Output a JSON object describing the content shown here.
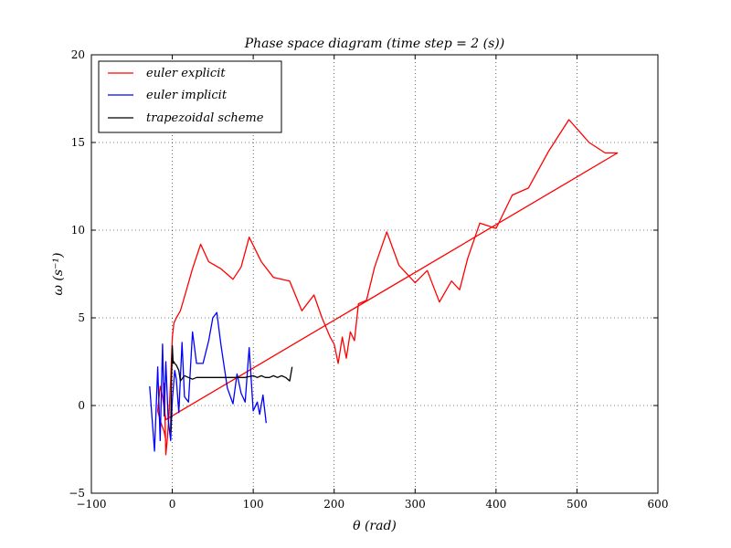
{
  "chart_data": {
    "type": "line",
    "title": "Phase space diagram (time step = 2 (s))",
    "xlabel": "θ (rad)",
    "ylabel": "ω (s⁻¹)",
    "xlim": [
      -100,
      600
    ],
    "ylim": [
      -5,
      20
    ],
    "xticks": [
      -100,
      0,
      100,
      200,
      300,
      400,
      500,
      600
    ],
    "yticks": [
      -5,
      0,
      5,
      10,
      15,
      20
    ],
    "xtick_labels": [
      "−100",
      "0",
      "100",
      "200",
      "300",
      "400",
      "500",
      "600"
    ],
    "ytick_labels": [
      "−5",
      "0",
      "5",
      "10",
      "15",
      "20"
    ],
    "grid": true,
    "legend_position": "top-left",
    "series": [
      {
        "name": "euler explicit",
        "color": "#ff0000",
        "x": [
          -10,
          -8,
          -6,
          -4,
          -2,
          0,
          2,
          5,
          10,
          15,
          25,
          35,
          45,
          60,
          75,
          85,
          95,
          110,
          125,
          145,
          160,
          175,
          185,
          195,
          200,
          205,
          210,
          215,
          220,
          225,
          230,
          240,
          250,
          265,
          280,
          300,
          315,
          330,
          345,
          355,
          365,
          380,
          400,
          420,
          440,
          465,
          490,
          515,
          535,
          550,
          -8,
          -12,
          -15,
          -18,
          -14,
          -10,
          -8
        ],
        "y": [
          1.3,
          -2.8,
          -1.8,
          -0.5,
          1.5,
          3.9,
          4.7,
          5.0,
          5.4,
          6.2,
          7.8,
          9.2,
          8.2,
          7.8,
          7.2,
          7.9,
          9.6,
          8.2,
          7.3,
          7.1,
          5.4,
          6.3,
          5.0,
          3.9,
          3.5,
          2.4,
          3.9,
          2.7,
          4.2,
          3.7,
          5.8,
          6.0,
          7.9,
          9.9,
          8.0,
          7.0,
          7.7,
          5.9,
          7.1,
          6.6,
          8.4,
          10.4,
          10.1,
          12.0,
          12.4,
          14.5,
          16.3,
          15.0,
          14.4,
          14.4,
          -0.8,
          0.5,
          1.1,
          -0.3,
          -1.0,
          -1.5,
          -2.0
        ]
      },
      {
        "name": "euler implicit",
        "color": "#0000ff",
        "x": [
          -28,
          -22,
          -18,
          -15,
          -12,
          -10,
          -8,
          -5,
          -2,
          0,
          3,
          5,
          8,
          12,
          15,
          20,
          25,
          30,
          38,
          45,
          50,
          55,
          60,
          68,
          75,
          80,
          85,
          90,
          95,
          100,
          105,
          108,
          112,
          116
        ],
        "y": [
          1.1,
          -2.6,
          2.2,
          -2.0,
          3.5,
          -0.6,
          2.5,
          -0.8,
          -2.0,
          0.3,
          2.0,
          1.5,
          -0.4,
          3.6,
          0.5,
          0.2,
          4.2,
          2.4,
          2.4,
          3.7,
          5.0,
          5.3,
          3.5,
          1.0,
          0.1,
          1.8,
          0.7,
          0.2,
          3.3,
          -0.3,
          0.2,
          -0.5,
          0.6,
          -1.0
        ]
      },
      {
        "name": "trapezoidal scheme",
        "color": "#000000",
        "x": [
          -2,
          -1,
          0,
          1,
          2,
          3,
          5,
          8,
          10,
          15,
          20,
          25,
          30,
          40,
          50,
          60,
          70,
          80,
          90,
          100,
          105,
          110,
          115,
          120,
          125,
          130,
          135,
          140,
          145,
          148
        ],
        "y": [
          -1.5,
          1.5,
          3.4,
          2.4,
          2.5,
          2.4,
          2.3,
          2.0,
          1.4,
          1.7,
          1.6,
          1.5,
          1.6,
          1.6,
          1.6,
          1.6,
          1.6,
          1.6,
          1.6,
          1.7,
          1.6,
          1.7,
          1.6,
          1.6,
          1.7,
          1.6,
          1.7,
          1.6,
          1.4,
          2.2
        ]
      }
    ]
  }
}
